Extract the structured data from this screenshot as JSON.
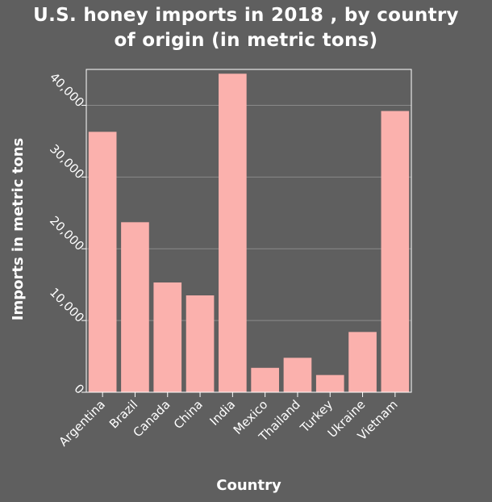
{
  "chart_data": {
    "type": "bar",
    "title_line1": "U.S. honey imports in 2018 , by country",
    "title_line2": "of origin (in metric tons)",
    "xlabel": "Country",
    "ylabel": "Imports in metric tons",
    "categories": [
      "Argentina",
      "Brazil",
      "Canada",
      "China",
      "India",
      "Mexico",
      "Thailand",
      "Turkey",
      "Ukraine",
      "Vietnam"
    ],
    "values": [
      36300,
      23700,
      15300,
      13500,
      44400,
      3400,
      4800,
      2400,
      8400,
      39200
    ],
    "ylim": [
      0,
      45000
    ],
    "yticks": [
      0,
      10000,
      20000,
      30000,
      40000
    ],
    "ytick_labels": [
      "0",
      "10,000",
      "20,000",
      "30,000",
      "40,000"
    ],
    "grid": true,
    "colors": {
      "bar": "#fbb1ad",
      "background": "#5f5f5f",
      "grid": "#8a8a8a",
      "text": "#ffffff"
    }
  }
}
